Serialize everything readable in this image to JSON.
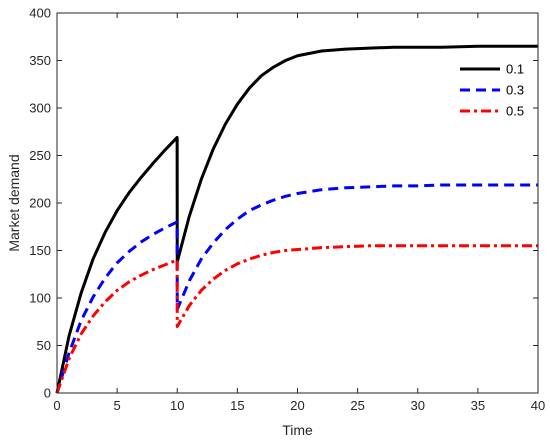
{
  "chart_data": {
    "type": "line",
    "title": "",
    "xlabel": "Time",
    "ylabel": "Market demand",
    "xlim": [
      0,
      40
    ],
    "ylim": [
      0,
      400
    ],
    "xticks": [
      0,
      5,
      10,
      15,
      20,
      25,
      30,
      35,
      40
    ],
    "yticks": [
      0,
      50,
      100,
      150,
      200,
      250,
      300,
      350,
      400
    ],
    "grid": false,
    "legend_position": "top-right",
    "series": [
      {
        "name": "0.1",
        "color": "#000000",
        "style": "solid",
        "x": [
          0,
          1,
          2,
          3,
          4,
          5,
          6,
          7,
          8,
          9,
          9.99,
          10.0,
          11,
          12,
          13,
          14,
          15,
          16,
          17,
          18,
          19,
          20,
          22,
          24,
          26,
          28,
          30,
          32,
          35,
          38,
          40
        ],
        "y": [
          0,
          60,
          105,
          141,
          169,
          192,
          211,
          227,
          242,
          256,
          269,
          138,
          186,
          225,
          257,
          283,
          304,
          321,
          334,
          343,
          350,
          355,
          360,
          362,
          363,
          364,
          364,
          364,
          365,
          365,
          365
        ]
      },
      {
        "name": "0.3",
        "color": "#0000ff",
        "style": "dashed",
        "x": [
          0,
          1,
          2,
          3,
          4,
          5,
          6,
          7,
          8,
          9,
          9.99,
          10.0,
          11,
          12,
          13,
          14,
          15,
          16,
          17,
          18,
          19,
          20,
          22,
          24,
          26,
          28,
          30,
          32,
          35,
          38,
          40
        ],
        "y": [
          0,
          42,
          76,
          101,
          121,
          137,
          149,
          159,
          167,
          174,
          180,
          88,
          118,
          141,
          158,
          172,
          183,
          192,
          198,
          203,
          207,
          210,
          214,
          216,
          217,
          218,
          218,
          219,
          219,
          219,
          219
        ]
      },
      {
        "name": "0.5",
        "color": "#ff0000",
        "style": "dashdot",
        "x": [
          0,
          1,
          2,
          3,
          4,
          5,
          6,
          7,
          8,
          9,
          9.99,
          10.0,
          11,
          12,
          13,
          14,
          15,
          16,
          17,
          18,
          19,
          20,
          22,
          24,
          26,
          28,
          30,
          32,
          35,
          38,
          40
        ],
        "y": [
          0,
          36,
          62,
          81,
          96,
          108,
          117,
          124,
          130,
          135,
          140,
          70,
          92,
          108,
          120,
          129,
          136,
          141,
          145,
          148,
          150,
          151,
          153,
          154,
          155,
          155,
          155,
          155,
          155,
          155,
          155
        ]
      }
    ]
  }
}
